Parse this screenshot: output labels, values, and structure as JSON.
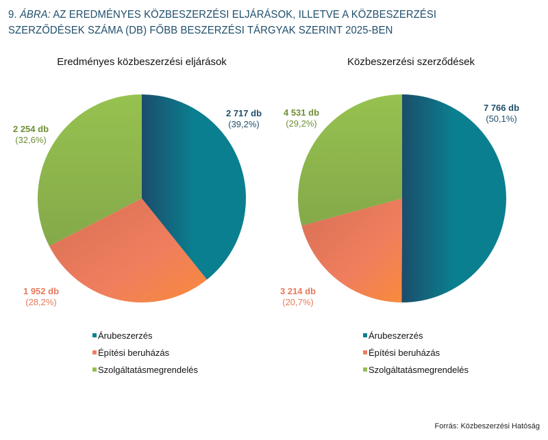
{
  "title_prefix": "9.",
  "title_label": "ÁBRA:",
  "title_text": "AZ EREDMÉNYES KÖZBESZERZÉSI ELJÁRÁSOK, ILLETVE A KÖZBESZERZÉSI SZERZŐDÉSEK SZÁMA (DB) FŐBB BESZERZÉSI TÁRGYAK SZERINT 2025-BEN",
  "source": "Forrás: Közbeszerzési Hatóság",
  "colors": {
    "aru": "#0a7f8f",
    "aru_dark": "#1b4d6b",
    "epit": "#ef7e5e",
    "epit_dark": "#d86f55",
    "szolg": "#93bf4f",
    "szolg_dark": "#84a94a",
    "label_aru": "#1f4e6b",
    "label_epit": "#e8795a",
    "label_szolg": "#6e8f35"
  },
  "chart_data": [
    {
      "type": "pie",
      "title": "Eredményes közbeszerzési eljárások",
      "categories": [
        "Árubeszerzés",
        "Építési beruházás",
        "Szolgáltatásmegrendelés"
      ],
      "values": [
        2717,
        1952,
        2254
      ],
      "value_labels": [
        "2 717 db",
        "1 952 db",
        "2 254 db"
      ],
      "percent_labels": [
        "(39,2%)",
        "(28,2%)",
        "(32,6%)"
      ],
      "legend": "bottom"
    },
    {
      "type": "pie",
      "title": "Közbeszerzési szerződések",
      "categories": [
        "Árubeszerzés",
        "Építési beruházás",
        "Szolgáltatásmegrendelés"
      ],
      "values": [
        7766,
        3214,
        4531
      ],
      "value_labels": [
        "7 766 db",
        "3 214 db",
        "4 531 db"
      ],
      "percent_labels": [
        "(50,1%)",
        "(20,7%)",
        "(29,2%)"
      ],
      "legend": "bottom"
    }
  ]
}
